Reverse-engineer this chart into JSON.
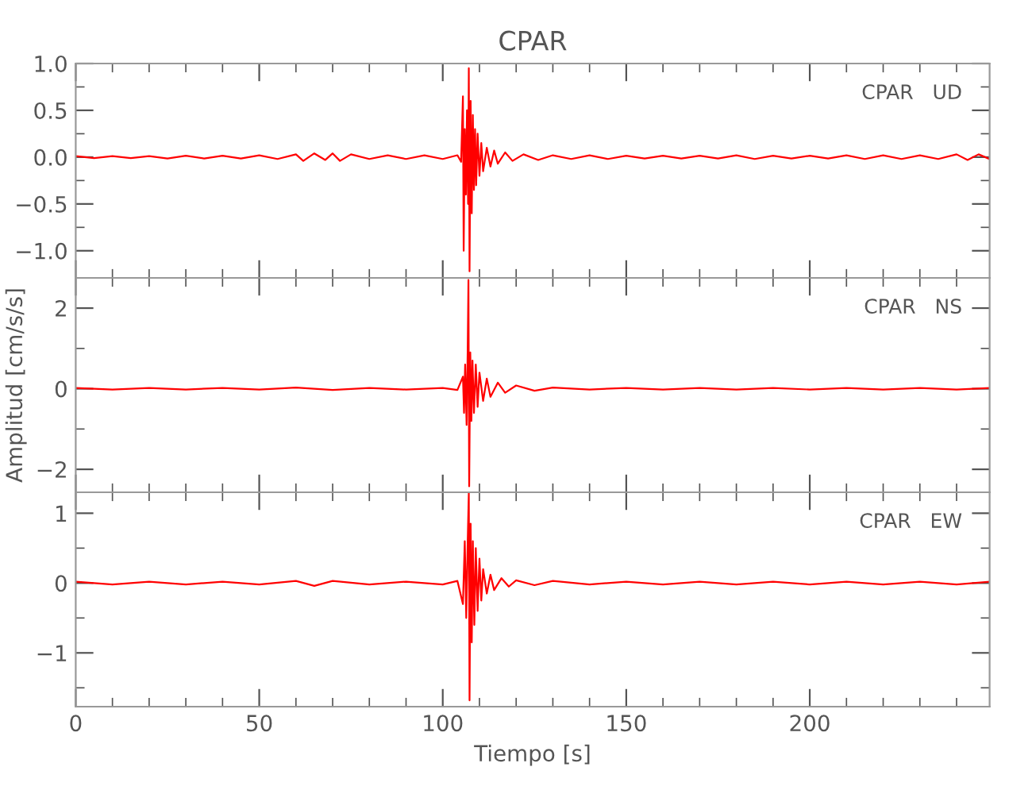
{
  "chart_data": [
    {
      "type": "line",
      "title": "CPAR",
      "annotations": [
        "CPAR   UD"
      ],
      "tick_labels": "y",
      "xlim": [
        0,
        249
      ],
      "ylim": [
        -1.29,
        1.0
      ],
      "xticks": [
        0,
        {
          "value": 10,
          "label": null
        },
        {
          "value": 20,
          "label": null
        },
        {
          "value": 30,
          "label": null
        },
        {
          "value": 40,
          "label": null
        },
        50,
        {
          "value": 60,
          "label": null
        },
        {
          "value": 70,
          "label": null
        },
        {
          "value": 80,
          "label": null
        },
        {
          "value": 90,
          "label": null
        },
        100,
        {
          "value": 110,
          "label": null
        },
        {
          "value": 120,
          "label": null
        },
        {
          "value": 130,
          "label": null
        },
        {
          "value": 140,
          "label": null
        },
        150,
        {
          "value": 160,
          "label": null
        },
        {
          "value": 170,
          "label": null
        },
        {
          "value": 180,
          "label": null
        },
        {
          "value": 190,
          "label": null
        },
        200,
        {
          "value": 210,
          "label": null
        },
        {
          "value": 220,
          "label": null
        },
        {
          "value": 230,
          "label": null
        },
        {
          "value": 240,
          "label": null
        }
      ],
      "yticks": [
        {
          "value": -1.0,
          "label": "−1.0"
        },
        {
          "value": -0.75,
          "label": null
        },
        {
          "value": -0.5,
          "label": "−0.5"
        },
        {
          "value": -0.25,
          "label": null
        },
        {
          "value": 0,
          "label": "0.0"
        },
        {
          "value": 0.25,
          "label": null
        },
        {
          "value": 0.5,
          "label": "0.5"
        },
        {
          "value": 0.75,
          "label": null
        },
        {
          "value": 1.0,
          "label": "1.0"
        }
      ],
      "series": [
        {
          "color": "#ff0000",
          "x": [
            0,
            5,
            10,
            15,
            20,
            25,
            30,
            35,
            40,
            45,
            50,
            55,
            60,
            62,
            65,
            68,
            70,
            72,
            75,
            80,
            85,
            90,
            95,
            100,
            104,
            105,
            105.5,
            105.7,
            106,
            106.3,
            106.6,
            106.9,
            107.1,
            107.3,
            107.6,
            107.9,
            108.2,
            108.5,
            108.8,
            109.1,
            109.5,
            110,
            110.5,
            111,
            112,
            113,
            114,
            115,
            117,
            119,
            122,
            126,
            130,
            135,
            140,
            145,
            150,
            155,
            160,
            165,
            170,
            175,
            180,
            185,
            190,
            195,
            200,
            205,
            210,
            215,
            220,
            225,
            230,
            235,
            240,
            243,
            246,
            249
          ],
          "values": [
            0.01,
            -0.01,
            0.01,
            -0.01,
            0.01,
            -0.015,
            0.015,
            -0.015,
            0.015,
            -0.015,
            0.02,
            -0.02,
            0.03,
            -0.04,
            0.04,
            -0.03,
            0.04,
            -0.04,
            0.03,
            -0.02,
            0.02,
            -0.02,
            0.02,
            -0.02,
            0.02,
            -0.05,
            0.65,
            -1.0,
            0.3,
            -0.4,
            0.5,
            -0.5,
            0.95,
            -1.22,
            0.6,
            -0.6,
            0.45,
            -0.35,
            0.3,
            -0.3,
            0.25,
            -0.2,
            0.15,
            -0.15,
            0.1,
            -0.1,
            0.07,
            -0.07,
            0.05,
            -0.04,
            0.03,
            -0.03,
            0.02,
            -0.02,
            0.02,
            -0.02,
            0.015,
            -0.015,
            0.015,
            -0.015,
            0.015,
            -0.015,
            0.02,
            -0.02,
            0.015,
            -0.015,
            0.015,
            -0.015,
            0.02,
            -0.02,
            0.02,
            -0.02,
            0.02,
            -0.02,
            0.03,
            -0.03,
            0.03,
            -0.02
          ]
        }
      ]
    },
    {
      "type": "line",
      "ylabel": "Amplitud [cm/s/s]",
      "annotations": [
        "CPAR   NS"
      ],
      "tick_labels": "y",
      "xlim": [
        0,
        249
      ],
      "ylim": [
        -2.57,
        2.75
      ],
      "xticks": [
        0,
        {
          "value": 10,
          "label": null
        },
        {
          "value": 20,
          "label": null
        },
        {
          "value": 30,
          "label": null
        },
        {
          "value": 40,
          "label": null
        },
        50,
        {
          "value": 60,
          "label": null
        },
        {
          "value": 70,
          "label": null
        },
        {
          "value": 80,
          "label": null
        },
        {
          "value": 90,
          "label": null
        },
        100,
        {
          "value": 110,
          "label": null
        },
        {
          "value": 120,
          "label": null
        },
        {
          "value": 130,
          "label": null
        },
        {
          "value": 140,
          "label": null
        },
        150,
        {
          "value": 160,
          "label": null
        },
        {
          "value": 170,
          "label": null
        },
        {
          "value": 180,
          "label": null
        },
        {
          "value": 190,
          "label": null
        },
        200,
        {
          "value": 210,
          "label": null
        },
        {
          "value": 220,
          "label": null
        },
        {
          "value": 230,
          "label": null
        },
        {
          "value": 240,
          "label": null
        }
      ],
      "yticks": [
        {
          "value": -2,
          "label": "−2"
        },
        {
          "value": -1,
          "label": null
        },
        0,
        {
          "value": 1,
          "label": null
        },
        2
      ],
      "series": [
        {
          "color": "#ff0000",
          "x": [
            0,
            10,
            20,
            30,
            40,
            50,
            60,
            70,
            80,
            90,
            100,
            104,
            105.5,
            105.8,
            106.1,
            106.5,
            106.8,
            107,
            107.2,
            107.5,
            107.8,
            108.1,
            108.5,
            109,
            109.5,
            110,
            111,
            112,
            113,
            115,
            117,
            120,
            125,
            130,
            140,
            150,
            160,
            170,
            180,
            190,
            200,
            210,
            220,
            230,
            240,
            249
          ],
          "values": [
            0.02,
            -0.02,
            0.02,
            -0.02,
            0.02,
            -0.02,
            0.03,
            -0.03,
            0.02,
            -0.02,
            0.02,
            -0.03,
            0.3,
            -0.6,
            0.6,
            -0.9,
            1.0,
            2.7,
            -2.42,
            0.9,
            -0.8,
            0.7,
            -0.6,
            0.6,
            -0.45,
            0.4,
            -0.3,
            0.25,
            -0.2,
            0.15,
            -0.1,
            0.08,
            -0.05,
            0.03,
            -0.02,
            0.02,
            -0.02,
            0.02,
            -0.02,
            0.02,
            -0.02,
            0.02,
            -0.02,
            0.02,
            -0.02,
            0.02
          ]
        }
      ]
    },
    {
      "type": "line",
      "xlabel": "Tiempo [s]",
      "annotations": [
        "CPAR   EW"
      ],
      "xlim": [
        0,
        249
      ],
      "ylim": [
        -1.77,
        1.3
      ],
      "xticks": [
        0,
        {
          "value": 10,
          "label": null
        },
        {
          "value": 20,
          "label": null
        },
        {
          "value": 30,
          "label": null
        },
        {
          "value": 40,
          "label": null
        },
        50,
        {
          "value": 60,
          "label": null
        },
        {
          "value": 70,
          "label": null
        },
        {
          "value": 80,
          "label": null
        },
        {
          "value": 90,
          "label": null
        },
        100,
        {
          "value": 110,
          "label": null
        },
        {
          "value": 120,
          "label": null
        },
        {
          "value": 130,
          "label": null
        },
        {
          "value": 140,
          "label": null
        },
        150,
        {
          "value": 160,
          "label": null
        },
        {
          "value": 170,
          "label": null
        },
        {
          "value": 180,
          "label": null
        },
        {
          "value": 190,
          "label": null
        },
        200,
        {
          "value": 210,
          "label": null
        },
        {
          "value": 220,
          "label": null
        },
        {
          "value": 230,
          "label": null
        },
        {
          "value": 240,
          "label": null
        }
      ],
      "yticks": [
        {
          "value": -1.5,
          "label": null
        },
        {
          "value": -1,
          "label": "−1"
        },
        {
          "value": -0.5,
          "label": null
        },
        0,
        {
          "value": 0.5,
          "label": null
        },
        1
      ],
      "series": [
        {
          "color": "#ff0000",
          "x": [
            0,
            10,
            20,
            30,
            40,
            50,
            60,
            65,
            70,
            80,
            90,
            100,
            104,
            105.5,
            106,
            106.4,
            106.8,
            107.1,
            107.3,
            107.6,
            107.9,
            108.2,
            108.6,
            109,
            109.5,
            110,
            110.5,
            111,
            112,
            113,
            114,
            116,
            118,
            120,
            125,
            130,
            140,
            150,
            160,
            170,
            180,
            190,
            200,
            210,
            220,
            230,
            240,
            249
          ],
          "values": [
            0.02,
            -0.02,
            0.02,
            -0.02,
            0.02,
            -0.02,
            0.03,
            -0.04,
            0.03,
            -0.02,
            0.02,
            -0.02,
            0.03,
            -0.3,
            0.6,
            -0.5,
            0.6,
            1.3,
            -1.68,
            0.85,
            -0.85,
            0.6,
            -0.6,
            0.5,
            -0.4,
            0.35,
            -0.25,
            0.2,
            -0.15,
            0.12,
            -0.1,
            0.07,
            -0.05,
            0.04,
            -0.03,
            0.03,
            -0.02,
            0.02,
            -0.02,
            0.02,
            -0.02,
            0.02,
            -0.02,
            0.02,
            -0.02,
            0.02,
            -0.02,
            0.02
          ]
        }
      ]
    }
  ]
}
